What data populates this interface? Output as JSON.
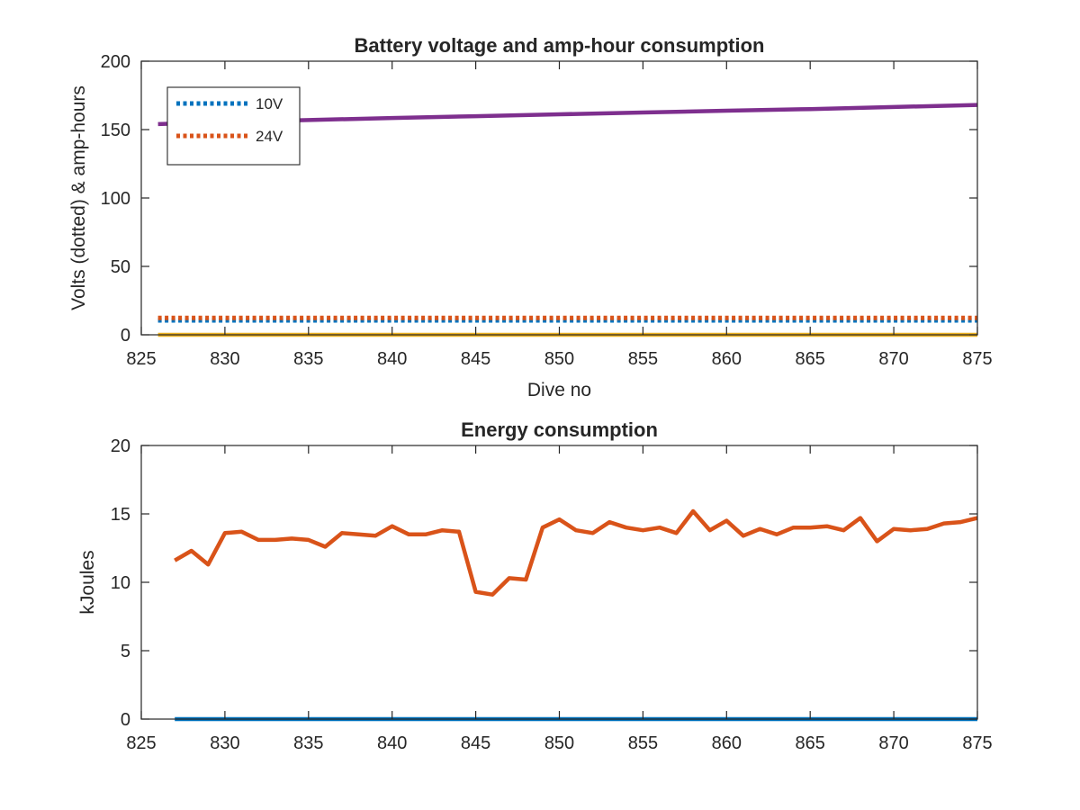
{
  "chart_data": [
    {
      "type": "line",
      "title": "Battery voltage and amp-hour consumption",
      "xlabel": "Dive no",
      "ylabel": "Volts (dotted) & amp-hours",
      "xlim": [
        825,
        875
      ],
      "ylim": [
        0,
        200
      ],
      "xticks": [
        825,
        830,
        835,
        840,
        845,
        850,
        855,
        860,
        865,
        870,
        875
      ],
      "yticks": [
        0,
        50,
        100,
        150,
        200
      ],
      "grid": false,
      "legend_position": "top-left",
      "series": [
        {
          "name": "10V",
          "style": "dotted",
          "color": "#0072BD",
          "x": [
            826,
            875
          ],
          "y": [
            10.5,
            10.5
          ]
        },
        {
          "name": "24V",
          "style": "dotted",
          "color": "#D95319",
          "x": [
            826,
            875
          ],
          "y": [
            12.3,
            12.3
          ]
        },
        {
          "style": "solid",
          "color": "#7E2F8E",
          "x": [
            826,
            830,
            835,
            840,
            845,
            850,
            855,
            860,
            865,
            870,
            875
          ],
          "y": [
            154,
            155.5,
            157,
            158.5,
            159.8,
            161.2,
            162.5,
            163.8,
            165,
            166.5,
            168
          ]
        },
        {
          "style": "solid",
          "color": "#EDB120",
          "x": [
            826,
            875
          ],
          "y": [
            0,
            0
          ]
        }
      ]
    },
    {
      "type": "line",
      "title": "Energy consumption",
      "xlabel": "",
      "ylabel": "kJoules",
      "xlim": [
        825,
        875
      ],
      "ylim": [
        0,
        20
      ],
      "xticks": [
        825,
        830,
        835,
        840,
        845,
        850,
        855,
        860,
        865,
        870,
        875
      ],
      "yticks": [
        0,
        5,
        10,
        15,
        20
      ],
      "grid": false,
      "series": [
        {
          "style": "solid",
          "color": "#0072BD",
          "x": [
            827,
            875
          ],
          "y": [
            0,
            0
          ]
        },
        {
          "style": "solid",
          "color": "#D95319",
          "x": [
            827,
            828,
            829,
            830,
            831,
            832,
            833,
            834,
            835,
            836,
            837,
            838,
            839,
            840,
            841,
            842,
            843,
            844,
            845,
            846,
            847,
            848,
            849,
            850,
            851,
            852,
            853,
            854,
            855,
            856,
            857,
            858,
            859,
            860,
            861,
            862,
            863,
            864,
            865,
            866,
            867,
            868,
            869,
            870,
            871,
            872,
            873,
            874,
            875
          ],
          "y": [
            11.6,
            12.3,
            11.3,
            13.6,
            13.7,
            13.1,
            13.1,
            13.2,
            13.1,
            12.6,
            13.6,
            13.5,
            13.4,
            14.1,
            13.5,
            13.5,
            13.8,
            13.7,
            9.3,
            9.1,
            10.3,
            10.2,
            14.0,
            14.6,
            13.8,
            13.6,
            14.4,
            14.0,
            13.8,
            14.0,
            13.6,
            15.2,
            13.8,
            14.5,
            13.4,
            13.9,
            13.5,
            14.0,
            14.0,
            14.1,
            13.8,
            14.7,
            13.0,
            13.9,
            13.8,
            13.9,
            14.3,
            14.4,
            14.7
          ]
        }
      ]
    }
  ]
}
